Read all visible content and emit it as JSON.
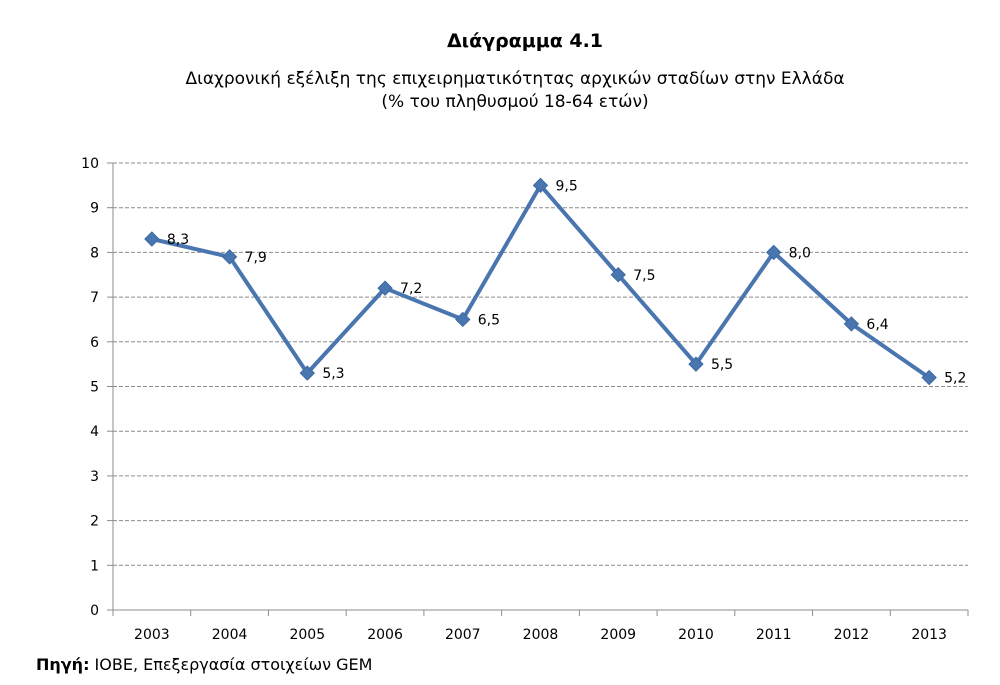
{
  "title": "Διάγραμμα 4.1",
  "subtitle_line1": "Διαχρονική εξέλιξη της επιχειρηματικότητας αρχικών σταδίων στην Ελλάδα",
  "subtitle_line2": "(% του πληθυσμού 18-64 ετών)",
  "source_label": "Πηγή:",
  "source_text": " ΙΟΒΕ, Επεξεργασία στοιχείων GEM",
  "chart_data": {
    "type": "line",
    "categories": [
      "2003",
      "2004",
      "2005",
      "2006",
      "2007",
      "2008",
      "2009",
      "2010",
      "2011",
      "2012",
      "2013"
    ],
    "series": [
      {
        "values": [
          8.3,
          7.9,
          5.3,
          7.2,
          6.5,
          9.5,
          7.5,
          5.5,
          8.0,
          6.4,
          5.2
        ]
      }
    ],
    "data_labels": [
      "8,3",
      "7,9",
      "5,3",
      "7,2",
      "6,5",
      "9,5",
      "7,5",
      "5,5",
      "8,0",
      "6,4",
      "5,2"
    ],
    "ylim": [
      0,
      10
    ],
    "yticks": [
      0,
      1,
      2,
      3,
      4,
      5,
      6,
      7,
      8,
      9,
      10
    ],
    "grid": true,
    "gridline_style": "dashed",
    "marker": "diamond",
    "line_color": "#4a76b0",
    "legend": "none"
  }
}
